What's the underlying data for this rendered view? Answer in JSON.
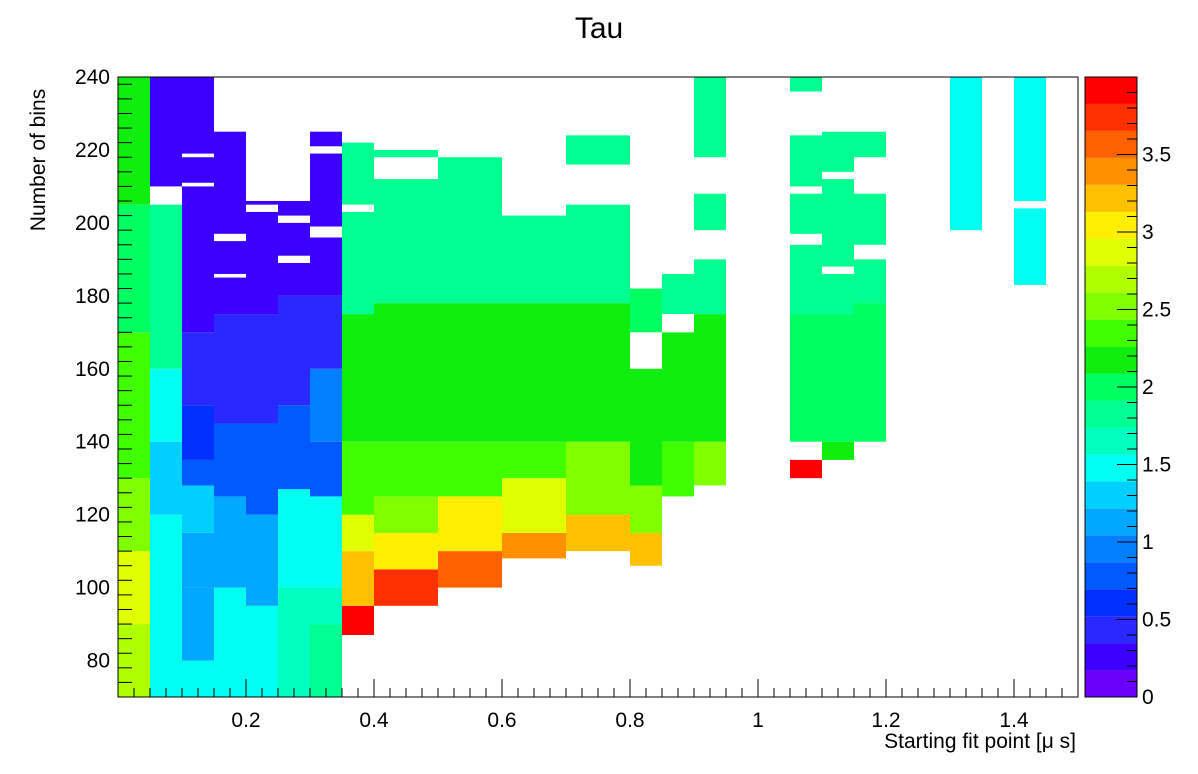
{
  "chart_data": {
    "type": "heatmap",
    "title": "Tau",
    "xlabel": "Starting fit point [μ s]",
    "ylabel": "Number of bins",
    "xlim": [
      0.0,
      1.5
    ],
    "ylim": [
      70,
      240
    ],
    "x_ticks": [
      0.2,
      0.4,
      0.6,
      0.8,
      1,
      1.2,
      1.4
    ],
    "x_tick_labels": [
      "0.2",
      "0.4",
      "0.6",
      "0.8",
      "1",
      "1.2",
      "1.4"
    ],
    "y_ticks": [
      80,
      100,
      120,
      140,
      160,
      180,
      200,
      220,
      240
    ],
    "y_tick_labels": [
      "80",
      "100",
      "120",
      "140",
      "160",
      "180",
      "200",
      "220",
      "240"
    ],
    "z_range": [
      0,
      4
    ],
    "z_ticks": [
      0,
      0.5,
      1,
      1.5,
      2,
      2.5,
      3,
      3.5
    ],
    "z_tick_labels": [
      "0",
      "0.5",
      "1",
      "1.5",
      "2",
      "2.5",
      "3",
      "3.5"
    ],
    "palette": [
      "#6a00f5",
      "#3c00ff",
      "#2828ff",
      "#0030ff",
      "#0058ff",
      "#0080ff",
      "#00a8ff",
      "#00d0ff",
      "#00fff0",
      "#00ffc0",
      "#00ff90",
      "#00ff60",
      "#10ee10",
      "#40ff00",
      "#80ff00",
      "#b0ff00",
      "#e0ff00",
      "#ffee00",
      "#ffc000",
      "#ff9000",
      "#ff6000",
      "#ff3000",
      "#ff0000"
    ],
    "cells": [
      [
        0.0,
        0.05,
        70,
        90,
        2.7
      ],
      [
        0.0,
        0.05,
        90,
        110,
        2.9
      ],
      [
        0.0,
        0.05,
        110,
        130,
        2.5
      ],
      [
        0.0,
        0.05,
        130,
        170,
        2.3
      ],
      [
        0.0,
        0.05,
        170,
        205,
        2.0
      ],
      [
        0.0,
        0.05,
        205,
        240,
        2.1
      ],
      [
        0.05,
        0.1,
        70,
        120,
        1.4
      ],
      [
        0.05,
        0.1,
        120,
        140,
        1.3
      ],
      [
        0.05,
        0.1,
        140,
        160,
        1.5
      ],
      [
        0.05,
        0.1,
        160,
        205,
        1.8
      ],
      [
        0.05,
        0.1,
        210,
        240,
        0.3
      ],
      [
        0.1,
        0.15,
        70,
        80,
        1.4
      ],
      [
        0.1,
        0.15,
        80,
        100,
        1.1
      ],
      [
        0.1,
        0.15,
        100,
        115,
        1.2
      ],
      [
        0.1,
        0.15,
        115,
        128,
        1.3
      ],
      [
        0.1,
        0.15,
        128,
        135,
        0.8
      ],
      [
        0.1,
        0.15,
        135,
        150,
        0.6
      ],
      [
        0.1,
        0.15,
        150,
        170,
        0.4
      ],
      [
        0.1,
        0.15,
        170,
        240,
        0.3
      ],
      [
        0.15,
        0.2,
        70,
        100,
        1.4
      ],
      [
        0.15,
        0.2,
        100,
        125,
        1.1
      ],
      [
        0.15,
        0.2,
        125,
        145,
        0.8
      ],
      [
        0.15,
        0.2,
        145,
        175,
        0.4
      ],
      [
        0.15,
        0.2,
        175,
        225,
        0.3
      ],
      [
        0.2,
        0.25,
        70,
        95,
        1.5
      ],
      [
        0.2,
        0.25,
        95,
        120,
        1.1
      ],
      [
        0.2,
        0.25,
        120,
        145,
        0.8
      ],
      [
        0.2,
        0.25,
        145,
        175,
        0.5
      ],
      [
        0.2,
        0.25,
        175,
        206,
        0.3
      ],
      [
        0.25,
        0.3,
        70,
        100,
        1.7
      ],
      [
        0.25,
        0.3,
        100,
        127,
        1.4
      ],
      [
        0.25,
        0.3,
        127,
        150,
        0.7
      ],
      [
        0.25,
        0.3,
        150,
        180,
        0.5
      ],
      [
        0.25,
        0.3,
        180,
        206,
        0.3
      ],
      [
        0.3,
        0.35,
        70,
        90,
        1.8
      ],
      [
        0.3,
        0.35,
        90,
        100,
        1.7
      ],
      [
        0.3,
        0.35,
        100,
        125,
        1.4
      ],
      [
        0.3,
        0.35,
        125,
        140,
        0.8
      ],
      [
        0.3,
        0.35,
        140,
        160,
        0.9
      ],
      [
        0.3,
        0.35,
        160,
        180,
        0.5
      ],
      [
        0.3,
        0.35,
        180,
        225,
        0.3
      ],
      [
        0.35,
        0.4,
        87,
        95,
        3.9
      ],
      [
        0.35,
        0.4,
        95,
        110,
        3.3
      ],
      [
        0.35,
        0.4,
        110,
        120,
        2.8
      ],
      [
        0.35,
        0.4,
        120,
        140,
        2.3
      ],
      [
        0.35,
        0.4,
        140,
        175,
        2.1
      ],
      [
        0.35,
        0.4,
        175,
        205,
        1.9
      ],
      [
        0.35,
        0.4,
        205,
        222,
        1.9
      ],
      [
        0.4,
        0.5,
        95,
        105,
        3.7
      ],
      [
        0.4,
        0.5,
        105,
        115,
        3.0
      ],
      [
        0.4,
        0.5,
        115,
        125,
        2.6
      ],
      [
        0.4,
        0.5,
        125,
        140,
        2.4
      ],
      [
        0.4,
        0.5,
        140,
        178,
        2.1
      ],
      [
        0.4,
        0.5,
        178,
        240,
        1.9
      ],
      [
        0.5,
        0.6,
        100,
        110,
        3.6
      ],
      [
        0.5,
        0.6,
        110,
        125,
        3.0
      ],
      [
        0.5,
        0.6,
        125,
        140,
        2.4
      ],
      [
        0.5,
        0.6,
        140,
        178,
        2.1
      ],
      [
        0.5,
        0.6,
        178,
        240,
        1.9
      ],
      [
        0.6,
        0.7,
        108,
        115,
        3.4
      ],
      [
        0.6,
        0.7,
        115,
        130,
        2.8
      ],
      [
        0.6,
        0.7,
        130,
        140,
        2.4
      ],
      [
        0.6,
        0.7,
        140,
        178,
        2.1
      ],
      [
        0.6,
        0.7,
        178,
        240,
        1.9
      ],
      [
        0.7,
        0.8,
        110,
        120,
        3.2
      ],
      [
        0.7,
        0.8,
        120,
        140,
        2.5
      ],
      [
        0.7,
        0.8,
        140,
        178,
        2.1
      ],
      [
        0.7,
        0.8,
        178,
        232,
        1.9
      ],
      [
        0.8,
        0.85,
        106,
        115,
        3.2
      ],
      [
        0.8,
        0.85,
        115,
        128,
        2.6
      ],
      [
        0.8,
        0.85,
        128,
        160,
        2.1
      ],
      [
        0.8,
        0.85,
        170,
        182,
        2.0
      ],
      [
        0.85,
        0.9,
        125,
        140,
        2.4
      ],
      [
        0.85,
        0.9,
        140,
        170,
        2.1
      ],
      [
        0.85,
        0.9,
        170,
        190,
        1.9
      ],
      [
        0.9,
        0.95,
        128,
        140,
        2.5
      ],
      [
        0.9,
        0.95,
        140,
        175,
        2.1
      ],
      [
        0.9,
        0.95,
        175,
        240,
        1.9
      ],
      [
        1.05,
        1.1,
        130,
        135,
        3.9
      ],
      [
        1.05,
        1.1,
        140,
        175,
        2.0
      ],
      [
        1.05,
        1.1,
        175,
        240,
        1.9
      ],
      [
        1.1,
        1.15,
        135,
        140,
        2.2
      ],
      [
        1.1,
        1.15,
        140,
        175,
        2.0
      ],
      [
        1.1,
        1.15,
        175,
        225,
        1.9
      ],
      [
        1.15,
        1.2,
        140,
        178,
        2.0
      ],
      [
        1.15,
        1.2,
        178,
        225,
        1.9
      ],
      [
        1.3,
        1.35,
        198,
        240,
        1.5
      ],
      [
        1.4,
        1.45,
        183,
        240,
        1.5
      ]
    ],
    "gaps": [
      [
        0.1,
        0.15,
        218,
        219
      ],
      [
        0.1,
        0.15,
        210,
        211
      ],
      [
        0.15,
        0.2,
        195,
        197
      ],
      [
        0.15,
        0.2,
        185,
        186
      ],
      [
        0.2,
        0.25,
        219,
        221
      ],
      [
        0.2,
        0.25,
        203,
        205
      ],
      [
        0.25,
        0.3,
        200,
        202
      ],
      [
        0.25,
        0.3,
        189,
        191
      ],
      [
        0.3,
        0.35,
        219,
        221
      ],
      [
        0.3,
        0.35,
        196,
        199
      ],
      [
        0.35,
        0.4,
        203,
        205
      ],
      [
        0.4,
        0.5,
        220,
        233
      ],
      [
        0.4,
        0.5,
        212,
        218
      ],
      [
        0.4,
        0.5,
        228,
        240
      ],
      [
        0.5,
        0.6,
        218,
        240
      ],
      [
        0.6,
        0.7,
        216,
        240
      ],
      [
        0.6,
        0.7,
        202,
        216
      ],
      [
        0.7,
        0.8,
        205,
        216
      ],
      [
        0.7,
        0.8,
        224,
        240
      ],
      [
        0.8,
        0.85,
        200,
        210
      ],
      [
        0.8,
        0.85,
        184,
        190
      ],
      [
        0.85,
        0.9,
        170,
        175
      ],
      [
        0.85,
        0.9,
        186,
        198
      ],
      [
        0.9,
        0.95,
        208,
        218
      ],
      [
        0.9,
        0.95,
        190,
        198
      ],
      [
        1.05,
        1.1,
        224,
        236
      ],
      [
        1.05,
        1.1,
        208,
        210
      ],
      [
        1.05,
        1.1,
        194,
        197
      ],
      [
        1.1,
        1.15,
        212,
        214
      ],
      [
        1.1,
        1.15,
        186,
        188
      ],
      [
        1.15,
        1.2,
        208,
        218
      ],
      [
        1.15,
        1.2,
        190,
        194
      ],
      [
        1.4,
        1.45,
        204,
        206
      ]
    ],
    "grid": false,
    "legend": "colorbar-right"
  }
}
